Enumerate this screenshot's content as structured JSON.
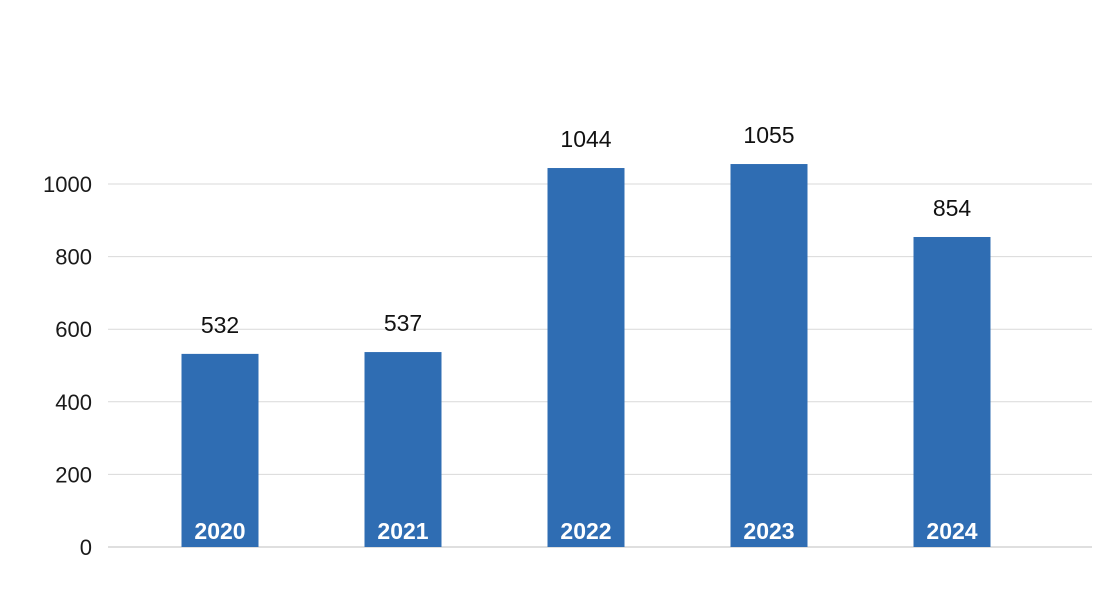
{
  "chart_data": {
    "type": "bar",
    "categories": [
      "2020",
      "2021",
      "2022",
      "2023",
      "2024"
    ],
    "values": [
      532,
      537,
      1044,
      1055,
      854
    ],
    "data_labels": [
      "532",
      "537",
      "1044",
      "1055",
      "854"
    ],
    "title": "",
    "xlabel": "",
    "ylabel": "",
    "ylim": [
      0,
      1000
    ],
    "yticks": [
      0,
      200,
      400,
      600,
      800,
      1000
    ],
    "ytick_labels": [
      "0",
      "200",
      "400",
      "600",
      "800",
      "1000"
    ],
    "grid": true,
    "legend": "none",
    "category_labels_inside_bars": true,
    "bar_color": "#2f6db3"
  }
}
